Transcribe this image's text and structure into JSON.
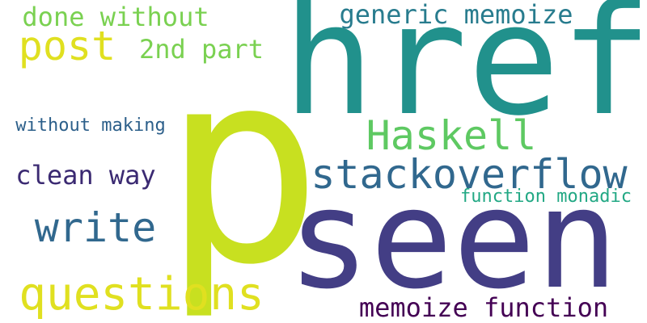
{
  "words": [
    {
      "id": "w-p",
      "text": "p",
      "color": "#c8e020"
    },
    {
      "id": "w-href",
      "text": "href",
      "color": "#21918c"
    },
    {
      "id": "w-seen",
      "text": "seen",
      "color": "#433e85"
    },
    {
      "id": "w-stackoverflow",
      "text": "stackoverflow",
      "color": "#31688e"
    },
    {
      "id": "w-haskell",
      "text": "Haskell",
      "color": "#5ec962"
    },
    {
      "id": "w-questions",
      "text": "questions",
      "color": "#e0e020"
    },
    {
      "id": "w-write",
      "text": "write",
      "color": "#31688e"
    },
    {
      "id": "w-memoize-function",
      "text": "memoize function",
      "color": "#440154"
    },
    {
      "id": "w-post",
      "text": "post",
      "color": "#e0e020"
    },
    {
      "id": "w-generic-memoize",
      "text": "generic memoize",
      "color": "#287c8e"
    },
    {
      "id": "w-done-without",
      "text": "done without",
      "color": "#7ad151"
    },
    {
      "id": "w-2nd-part",
      "text": "2nd part",
      "color": "#7ad151"
    },
    {
      "id": "w-clean-way",
      "text": "clean way",
      "color": "#3b2a72"
    },
    {
      "id": "w-without-making",
      "text": "without making",
      "color": "#2c5f8a"
    },
    {
      "id": "w-function-monadic",
      "text": "function monadic",
      "color": "#22a884"
    }
  ]
}
